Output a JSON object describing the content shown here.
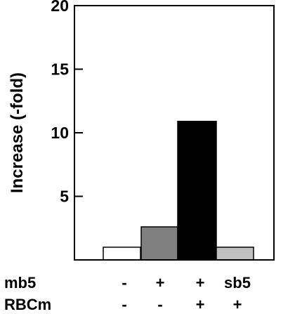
{
  "chart_data": {
    "type": "bar",
    "ylabel": "Increase (-fold)",
    "ylim": [
      0,
      20
    ],
    "yticks": [
      5,
      10,
      15,
      20
    ],
    "grid": false,
    "values": [
      1.0,
      2.6,
      10.9,
      1.0
    ],
    "bar_colors": [
      "#ffffff",
      "#808080",
      "#000000",
      "#c0c0c0"
    ],
    "condition_rows": [
      {
        "label": "mb5",
        "marks": [
          "-",
          "+",
          "+",
          "sb5"
        ]
      },
      {
        "label": "RBCm",
        "marks": [
          "-",
          "-",
          "+",
          "+"
        ]
      }
    ]
  }
}
